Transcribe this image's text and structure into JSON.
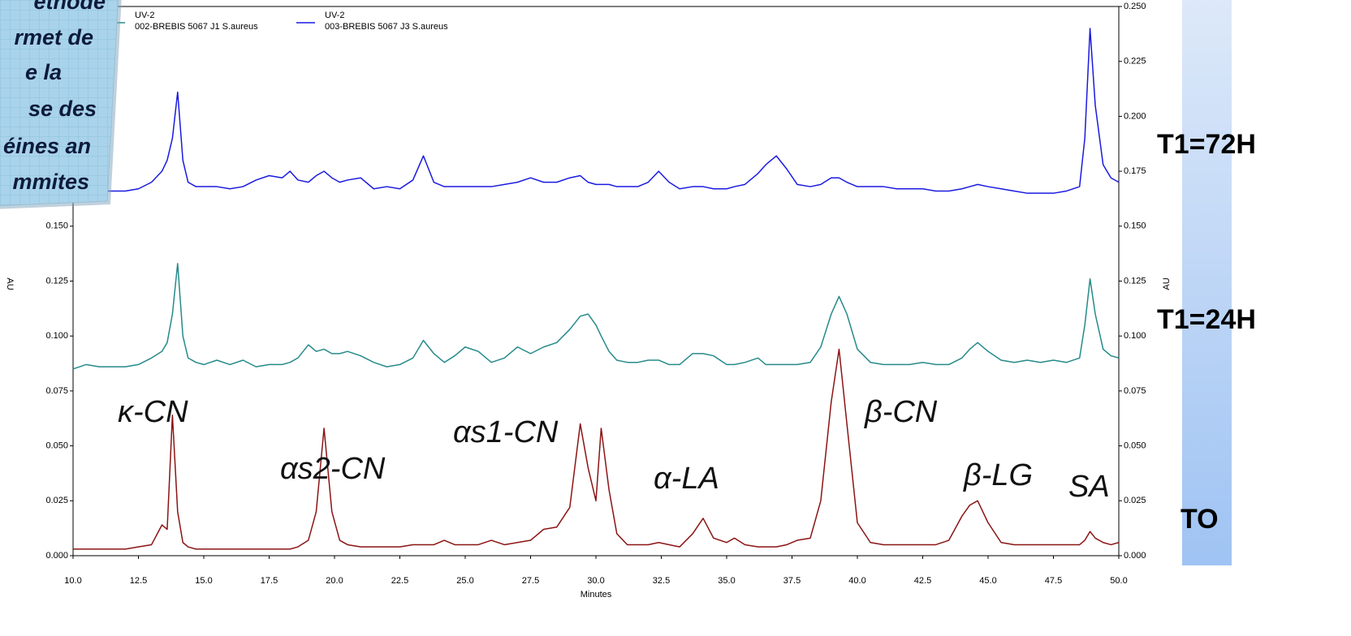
{
  "chart_data": {
    "type": "line",
    "channel": "UV-2",
    "x_label": "Minutes",
    "y_label": "AU",
    "x": [
      10,
      10.5,
      11,
      11.5,
      12,
      12.5,
      13,
      13.4,
      13.6,
      13.8,
      14.0,
      14.2,
      14.4,
      14.7,
      15,
      15.5,
      16,
      16.5,
      17,
      17.5,
      18,
      18.3,
      18.6,
      19,
      19.3,
      19.6,
      19.9,
      20.2,
      20.5,
      21,
      21.5,
      22,
      22.5,
      23,
      23.4,
      23.8,
      24.2,
      24.6,
      25,
      25.5,
      26,
      26.5,
      27,
      27.5,
      28,
      28.5,
      29,
      29.4,
      29.7,
      30.0,
      30.2,
      30.5,
      30.8,
      31.2,
      31.6,
      32,
      32.4,
      32.8,
      33.2,
      33.7,
      34.1,
      34.5,
      35,
      35.3,
      35.7,
      36.2,
      36.5,
      36.9,
      37.3,
      37.7,
      38.2,
      38.6,
      39.0,
      39.3,
      39.6,
      40.0,
      40.5,
      41,
      41.5,
      42,
      42.5,
      43,
      43.5,
      44,
      44.3,
      44.6,
      45,
      45.5,
      46,
      46.5,
      47,
      47.5,
      48,
      48.5,
      48.7,
      48.9,
      49.1,
      49.4,
      49.7,
      50
    ],
    "series": [
      {
        "name": "002-BREBIS 5067 J1 S.aureus",
        "color": "#268a8a",
        "values": [
          0.085,
          0.087,
          0.086,
          0.086,
          0.086,
          0.087,
          0.09,
          0.093,
          0.097,
          0.11,
          0.133,
          0.1,
          0.09,
          0.088,
          0.087,
          0.089,
          0.087,
          0.089,
          0.086,
          0.087,
          0.087,
          0.088,
          0.09,
          0.096,
          0.093,
          0.094,
          0.092,
          0.092,
          0.093,
          0.091,
          0.088,
          0.086,
          0.087,
          0.09,
          0.098,
          0.092,
          0.088,
          0.091,
          0.095,
          0.093,
          0.088,
          0.09,
          0.095,
          0.092,
          0.095,
          0.097,
          0.103,
          0.109,
          0.11,
          0.105,
          0.1,
          0.093,
          0.089,
          0.088,
          0.088,
          0.089,
          0.089,
          0.087,
          0.087,
          0.092,
          0.092,
          0.091,
          0.087,
          0.087,
          0.088,
          0.09,
          0.087,
          0.087,
          0.087,
          0.087,
          0.088,
          0.095,
          0.11,
          0.118,
          0.11,
          0.094,
          0.088,
          0.087,
          0.087,
          0.087,
          0.088,
          0.087,
          0.087,
          0.09,
          0.094,
          0.097,
          0.093,
          0.089,
          0.088,
          0.089,
          0.088,
          0.089,
          0.088,
          0.09,
          0.105,
          0.126,
          0.11,
          0.094,
          0.091,
          0.09
        ]
      },
      {
        "name": "003-BREBIS 5067 J3 S.aureus",
        "color": "#1a1ae0",
        "values": [
          0.165,
          0.165,
          0.166,
          0.166,
          0.166,
          0.167,
          0.17,
          0.175,
          0.18,
          0.19,
          0.211,
          0.18,
          0.17,
          0.168,
          0.168,
          0.168,
          0.167,
          0.168,
          0.171,
          0.173,
          0.172,
          0.175,
          0.171,
          0.17,
          0.173,
          0.175,
          0.172,
          0.17,
          0.171,
          0.172,
          0.167,
          0.168,
          0.167,
          0.171,
          0.182,
          0.17,
          0.168,
          0.168,
          0.168,
          0.168,
          0.168,
          0.169,
          0.17,
          0.172,
          0.17,
          0.17,
          0.172,
          0.173,
          0.17,
          0.169,
          0.169,
          0.169,
          0.168,
          0.168,
          0.168,
          0.17,
          0.175,
          0.17,
          0.167,
          0.168,
          0.168,
          0.167,
          0.167,
          0.168,
          0.169,
          0.174,
          0.178,
          0.182,
          0.176,
          0.169,
          0.168,
          0.169,
          0.172,
          0.172,
          0.17,
          0.168,
          0.168,
          0.168,
          0.167,
          0.167,
          0.167,
          0.166,
          0.166,
          0.167,
          0.168,
          0.169,
          0.168,
          0.167,
          0.166,
          0.165,
          0.165,
          0.165,
          0.166,
          0.168,
          0.19,
          0.24,
          0.205,
          0.178,
          0.172,
          0.17
        ]
      },
      {
        "color": "#8b1414",
        "values": [
          0.003,
          0.003,
          0.003,
          0.003,
          0.003,
          0.004,
          0.005,
          0.014,
          0.012,
          0.064,
          0.02,
          0.006,
          0.004,
          0.003,
          0.003,
          0.003,
          0.003,
          0.003,
          0.003,
          0.003,
          0.003,
          0.003,
          0.004,
          0.007,
          0.02,
          0.058,
          0.02,
          0.007,
          0.005,
          0.004,
          0.004,
          0.004,
          0.004,
          0.005,
          0.005,
          0.005,
          0.007,
          0.005,
          0.005,
          0.005,
          0.007,
          0.005,
          0.006,
          0.007,
          0.012,
          0.013,
          0.022,
          0.06,
          0.04,
          0.025,
          0.058,
          0.03,
          0.01,
          0.005,
          0.005,
          0.005,
          0.006,
          0.005,
          0.004,
          0.01,
          0.017,
          0.008,
          0.006,
          0.008,
          0.005,
          0.004,
          0.004,
          0.004,
          0.005,
          0.007,
          0.008,
          0.025,
          0.07,
          0.094,
          0.06,
          0.015,
          0.006,
          0.005,
          0.005,
          0.005,
          0.005,
          0.005,
          0.007,
          0.018,
          0.023,
          0.025,
          0.015,
          0.006,
          0.005,
          0.005,
          0.005,
          0.005,
          0.005,
          0.005,
          0.007,
          0.011,
          0.008,
          0.006,
          0.005,
          0.006
        ]
      }
    ],
    "xlim": [
      10,
      50
    ],
    "xticks": [
      {
        "value": 10,
        "label": "10.0"
      },
      {
        "value": 12.5,
        "label": "12.5"
      },
      {
        "value": 15,
        "label": "15.0"
      },
      {
        "value": 17.5,
        "label": "17.5"
      },
      {
        "value": 20,
        "label": "20.0"
      },
      {
        "value": 22.5,
        "label": "22.5"
      },
      {
        "value": 25,
        "label": "25.0"
      },
      {
        "value": 27.5,
        "label": "27.5"
      },
      {
        "value": 30,
        "label": "30.0"
      },
      {
        "value": 32.5,
        "label": "32.5"
      },
      {
        "value": 35,
        "label": "35.0"
      },
      {
        "value": 37.5,
        "label": "37.5"
      },
      {
        "value": 40,
        "label": "40.0"
      },
      {
        "value": 42.5,
        "label": "42.5"
      },
      {
        "value": 45,
        "label": "45.0"
      },
      {
        "value": 47.5,
        "label": "47.5"
      },
      {
        "value": 50,
        "label": "50.0"
      }
    ],
    "ylim": [
      0,
      0.25
    ],
    "yticks": [
      {
        "value": 0,
        "label": "0.000"
      },
      0.025,
      {
        "value": 0.05,
        "label": "0.050"
      },
      0.075,
      {
        "value": 0.1,
        "label": "0.100"
      },
      0.125,
      {
        "value": 0.15,
        "label": "0.150"
      },
      0.175,
      {
        "value": 0.2,
        "label": "0.200"
      },
      0.225,
      {
        "value": 0.25,
        "label": "0.250"
      }
    ],
    "peak_labels": [
      "κ-CN",
      "αs2-CN",
      "αs1-CN",
      "α-LA",
      "β-CN",
      "β-LG",
      "SA"
    ],
    "trace_labels": [
      "T1=72H",
      "T1=24H",
      "TO"
    ],
    "note_lines": [
      "éthode",
      "rmet de",
      "e la",
      "se des",
      "éines an",
      "mmites"
    ]
  }
}
